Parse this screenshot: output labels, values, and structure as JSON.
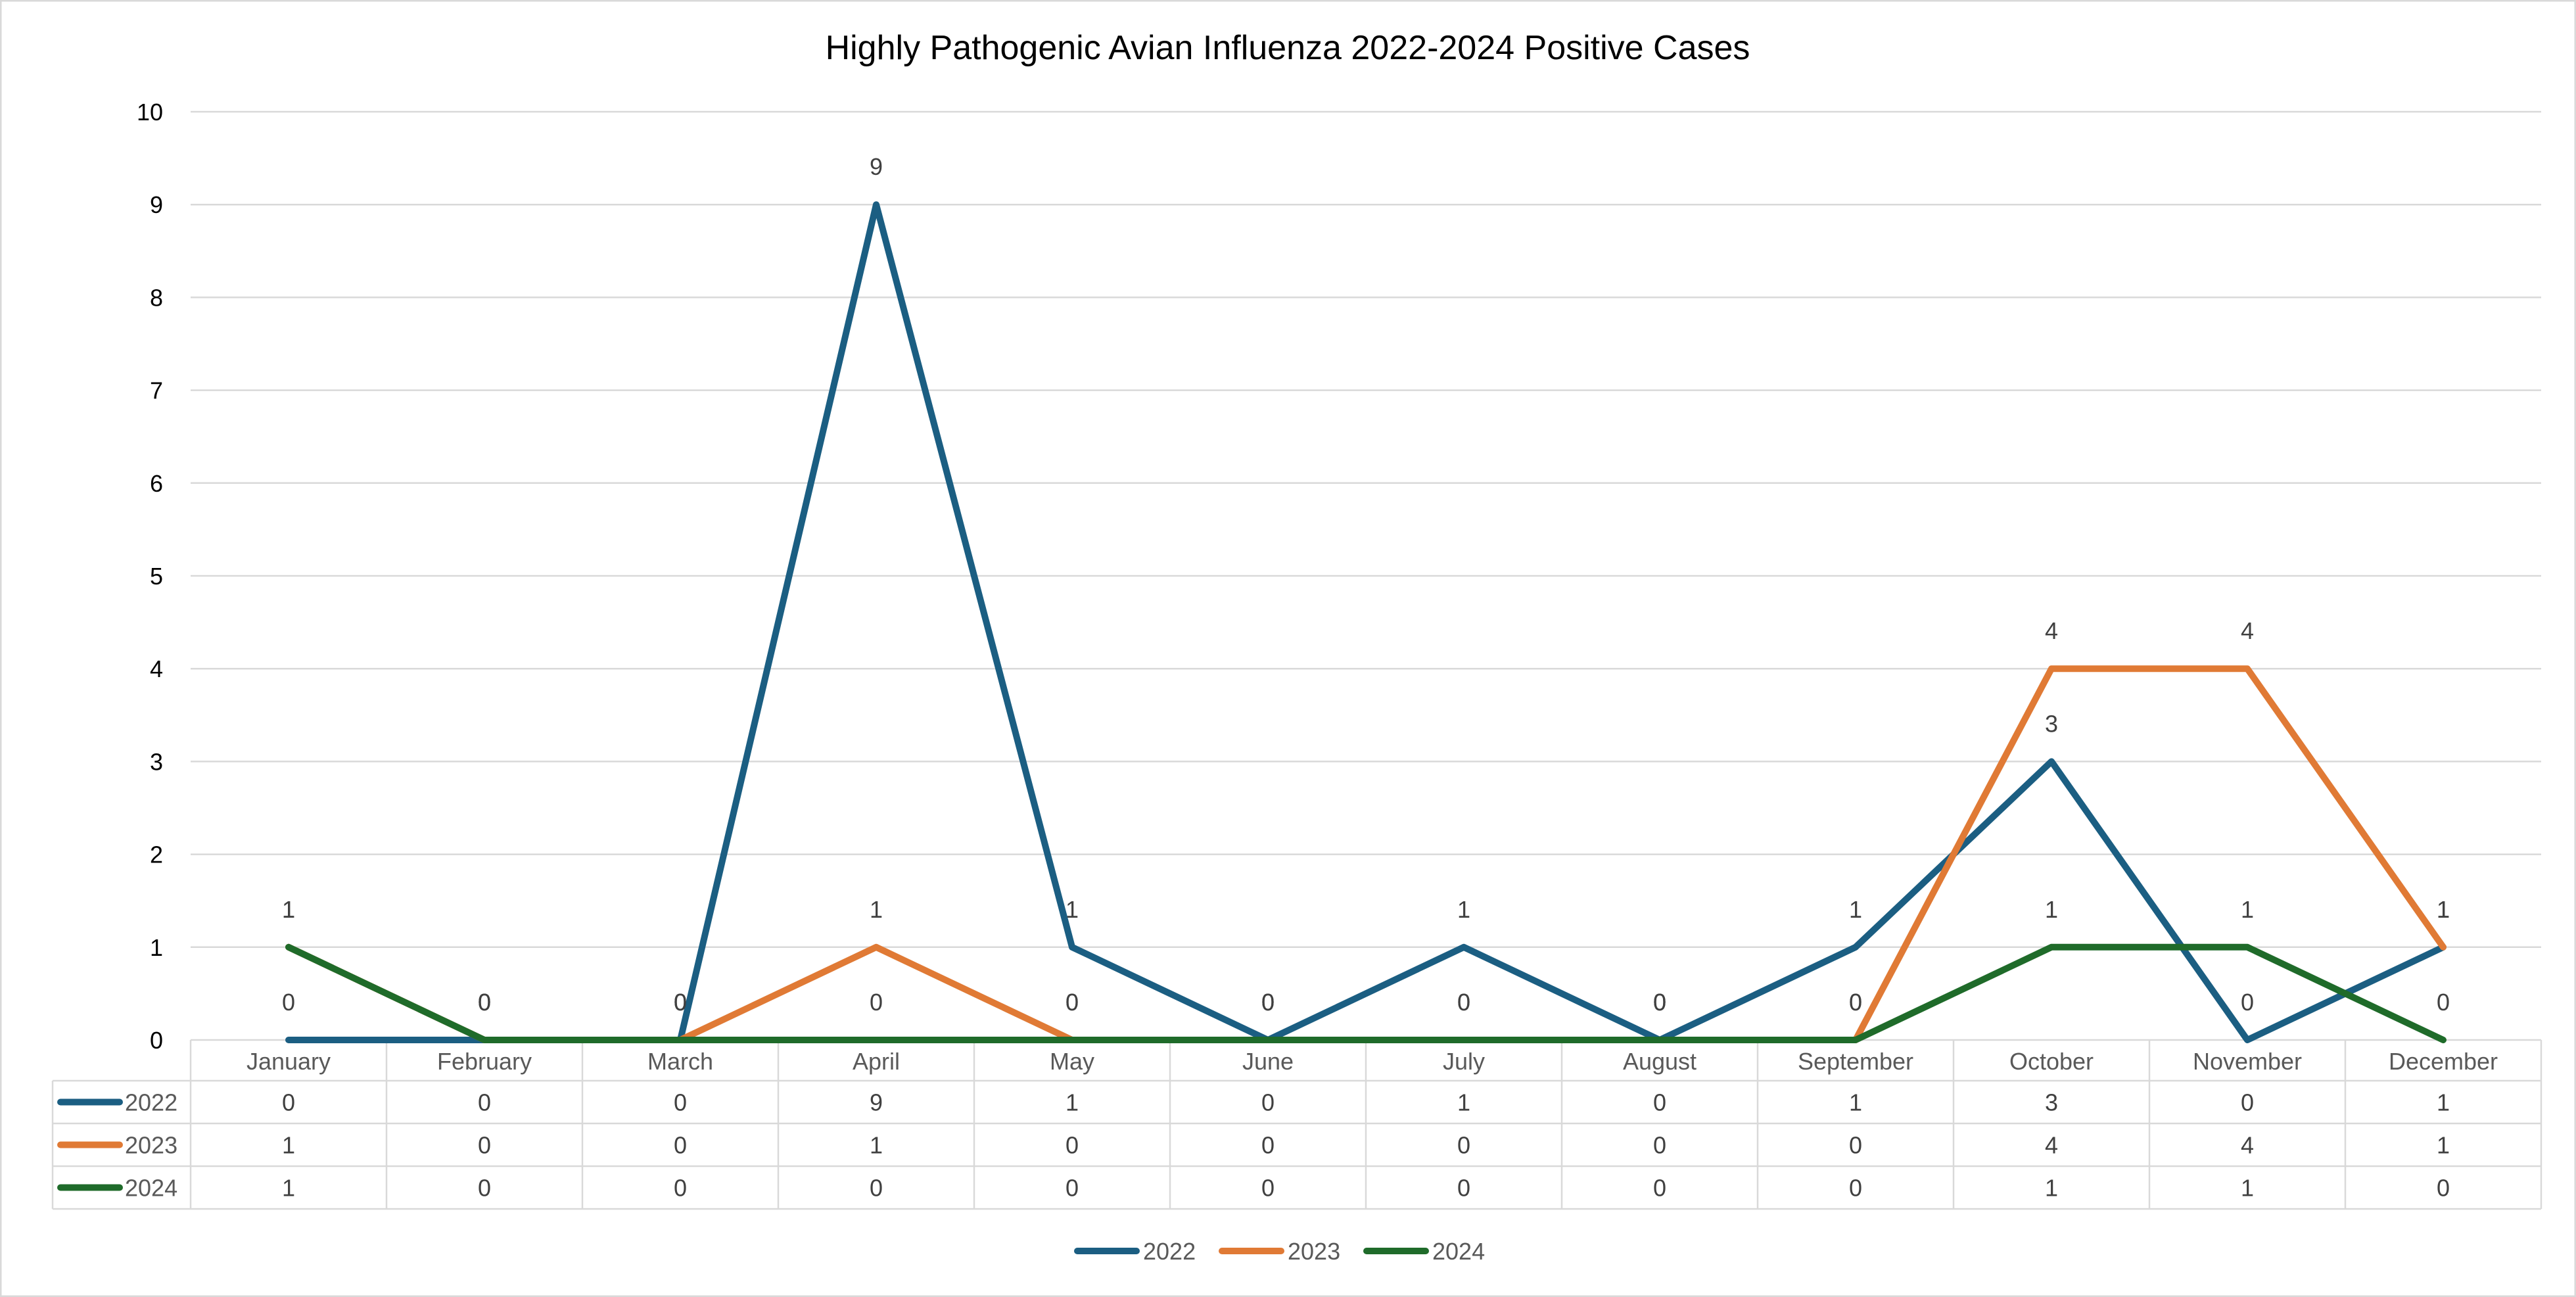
{
  "chart_data": {
    "type": "line",
    "title": "Highly Pathogenic Avian Influenza 2022-2024 Positive Cases",
    "xlabel": "",
    "ylabel": "",
    "ylim": [
      0,
      10
    ],
    "yticks": [
      0,
      1,
      2,
      3,
      4,
      5,
      6,
      7,
      8,
      9,
      10
    ],
    "grid": true,
    "legend_position": "bottom",
    "data_table": true,
    "categories": [
      "January",
      "February",
      "March",
      "April",
      "May",
      "June",
      "July",
      "August",
      "September",
      "October",
      "November",
      "December"
    ],
    "series": [
      {
        "name": "2022",
        "color": "#1b5e82",
        "values": [
          0,
          0,
          0,
          9,
          1,
          0,
          1,
          0,
          1,
          3,
          0,
          1
        ]
      },
      {
        "name": "2023",
        "color": "#e07a35",
        "values": [
          1,
          0,
          0,
          1,
          0,
          0,
          0,
          0,
          0,
          4,
          4,
          1
        ]
      },
      {
        "name": "2024",
        "color": "#1f6b2a",
        "values": [
          1,
          0,
          0,
          0,
          0,
          0,
          0,
          0,
          0,
          1,
          1,
          0
        ]
      }
    ]
  }
}
